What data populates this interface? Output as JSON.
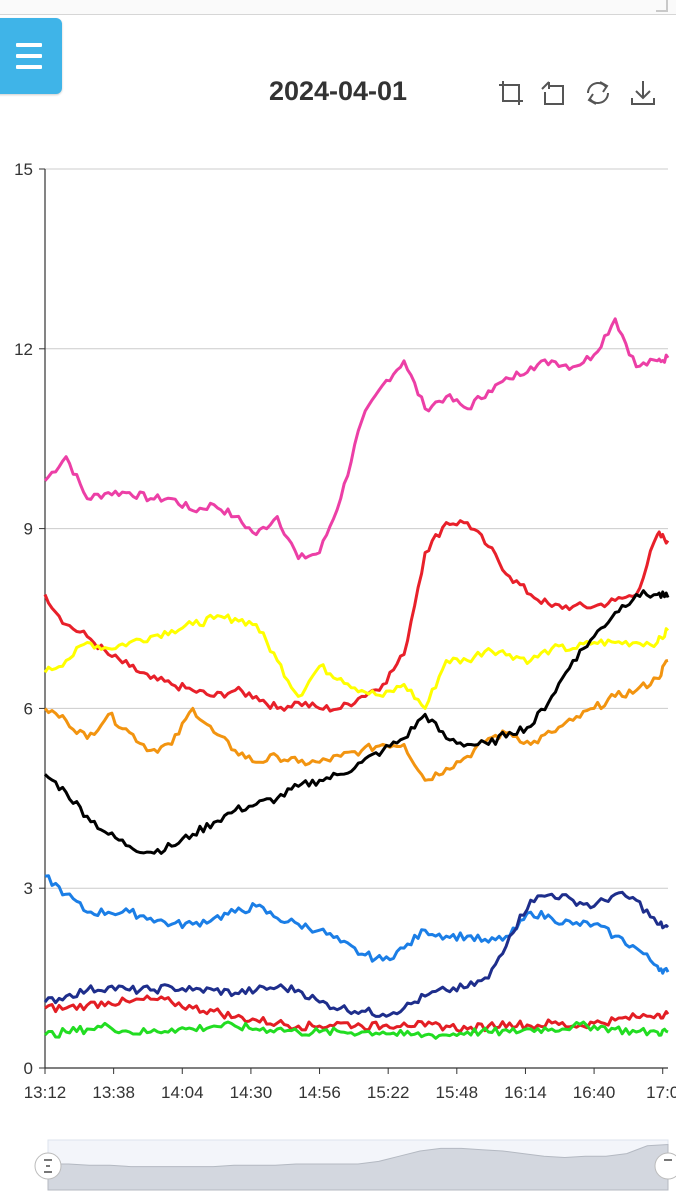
{
  "toolbar": {
    "menu_icon": "hamburger-menu-icon",
    "tools": [
      "zoom-select-icon",
      "zoom-reset-icon",
      "refresh-icon",
      "download-icon"
    ]
  },
  "chart_data": {
    "type": "line",
    "title": "2024-04-01",
    "xlabel": "",
    "ylabel": "",
    "ylim": [
      0,
      15
    ],
    "yticks": [
      0,
      3,
      6,
      9,
      12,
      15
    ],
    "xlim": [
      "13:12",
      "17:08"
    ],
    "xticks": [
      "13:12",
      "13:38",
      "14:04",
      "14:30",
      "14:56",
      "15:22",
      "15:48",
      "16:14",
      "16:40",
      "17:0"
    ],
    "grid": "horizontal",
    "legend": "none",
    "x": [
      "13:12",
      "13:20",
      "13:28",
      "13:36",
      "13:44",
      "13:52",
      "14:00",
      "14:08",
      "14:16",
      "14:24",
      "14:32",
      "14:40",
      "14:48",
      "14:56",
      "15:04",
      "15:12",
      "15:20",
      "15:28",
      "15:36",
      "15:44",
      "15:52",
      "16:00",
      "16:08",
      "16:16",
      "16:24",
      "16:32",
      "16:40",
      "16:48",
      "16:56",
      "17:04",
      "17:08"
    ],
    "series": [
      {
        "color": "#ec3fa6",
        "values": [
          9.8,
          10.2,
          9.5,
          9.6,
          9.6,
          9.5,
          9.5,
          9.3,
          9.4,
          9.2,
          8.9,
          9.2,
          8.5,
          8.6,
          9.5,
          10.8,
          11.4,
          11.8,
          11.0,
          11.2,
          11.0,
          11.3,
          11.5,
          11.7,
          11.8,
          11.7,
          11.9,
          12.5,
          11.7,
          11.8,
          11.85
        ]
      },
      {
        "color": "#e8202a",
        "values": [
          7.9,
          7.4,
          7.2,
          6.9,
          6.7,
          6.5,
          6.4,
          6.3,
          6.2,
          6.3,
          6.2,
          6.0,
          6.1,
          6.0,
          6.0,
          6.2,
          6.4,
          6.9,
          8.6,
          9.1,
          9.1,
          8.7,
          8.2,
          7.9,
          7.7,
          7.7,
          7.7,
          7.8,
          7.9,
          8.9,
          8.8
        ]
      },
      {
        "color": "#ffff00",
        "values": [
          6.6,
          6.8,
          7.1,
          7.0,
          7.1,
          7.2,
          7.3,
          7.4,
          7.5,
          7.5,
          7.4,
          6.8,
          6.2,
          6.7,
          6.5,
          6.3,
          6.2,
          6.4,
          6.0,
          6.8,
          6.8,
          7.0,
          6.9,
          6.8,
          7.0,
          7.0,
          7.1,
          7.1,
          7.1,
          7.1,
          7.3
        ]
      },
      {
        "color": "#f29410",
        "values": [
          6.0,
          5.8,
          5.5,
          5.9,
          5.6,
          5.3,
          5.4,
          6.0,
          5.6,
          5.3,
          5.1,
          5.2,
          5.1,
          5.1,
          5.2,
          5.3,
          5.4,
          5.4,
          4.8,
          5.0,
          5.2,
          5.5,
          5.6,
          5.4,
          5.6,
          5.8,
          6.0,
          6.2,
          6.3,
          6.5,
          6.8
        ]
      },
      {
        "color": "#000000",
        "values": [
          4.9,
          4.6,
          4.2,
          3.9,
          3.7,
          3.6,
          3.7,
          3.9,
          4.1,
          4.3,
          4.4,
          4.5,
          4.7,
          4.8,
          4.9,
          5.1,
          5.3,
          5.5,
          5.9,
          5.5,
          5.4,
          5.4,
          5.6,
          5.7,
          6.2,
          6.8,
          7.2,
          7.6,
          7.9,
          7.9,
          7.85
        ]
      },
      {
        "color": "#1b7ee6",
        "values": [
          3.2,
          2.9,
          2.6,
          2.6,
          2.6,
          2.5,
          2.4,
          2.4,
          2.5,
          2.6,
          2.7,
          2.5,
          2.4,
          2.3,
          2.1,
          1.9,
          1.8,
          2.0,
          2.3,
          2.2,
          2.2,
          2.1,
          2.2,
          2.6,
          2.5,
          2.4,
          2.4,
          2.2,
          2.0,
          1.7,
          1.6
        ]
      },
      {
        "color": "#1e2e8c",
        "values": [
          1.1,
          1.2,
          1.3,
          1.35,
          1.3,
          1.3,
          1.35,
          1.3,
          1.3,
          1.25,
          1.3,
          1.35,
          1.3,
          1.1,
          1.0,
          0.95,
          0.9,
          1.0,
          1.2,
          1.3,
          1.35,
          1.5,
          2.2,
          2.8,
          2.9,
          2.8,
          2.7,
          2.9,
          2.8,
          2.4,
          2.35
        ]
      },
      {
        "color": "#e31e24",
        "values": [
          1.0,
          1.0,
          1.05,
          1.1,
          1.1,
          1.15,
          1.1,
          1.0,
          0.95,
          0.85,
          0.8,
          0.75,
          0.7,
          0.7,
          0.75,
          0.7,
          0.7,
          0.75,
          0.7,
          0.7,
          0.65,
          0.7,
          0.75,
          0.7,
          0.75,
          0.7,
          0.75,
          0.8,
          0.85,
          0.9,
          0.9
        ]
      },
      {
        "color": "#22dd22",
        "values": [
          0.55,
          0.6,
          0.65,
          0.7,
          0.6,
          0.6,
          0.65,
          0.65,
          0.7,
          0.7,
          0.65,
          0.65,
          0.6,
          0.6,
          0.6,
          0.6,
          0.6,
          0.55,
          0.55,
          0.55,
          0.6,
          0.6,
          0.6,
          0.65,
          0.65,
          0.7,
          0.7,
          0.65,
          0.6,
          0.6,
          0.6
        ]
      }
    ],
    "overview_values": [
      2.0,
      2.0,
      1.9,
      1.9,
      1.8,
      1.8,
      1.8,
      1.8,
      1.8,
      1.9,
      1.9,
      1.9,
      2.0,
      2.0,
      2.0,
      2.0,
      2.2,
      2.6,
      3.0,
      3.2,
      3.2,
      3.1,
      3.0,
      2.8,
      2.6,
      2.5,
      2.6,
      2.6,
      2.8,
      3.4,
      3.5
    ]
  }
}
